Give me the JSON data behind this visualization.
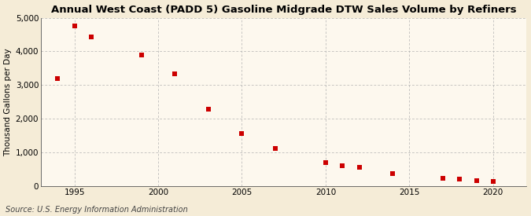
{
  "title": "Annual West Coast (PADD 5) Gasoline Midgrade DTW Sales Volume by Refiners",
  "ylabel": "Thousand Gallons per Day",
  "source": "Source: U.S. Energy Information Administration",
  "background_color": "#f5ecd7",
  "plot_background_color": "#fdf8ee",
  "marker_color": "#cc0000",
  "x": [
    1994,
    1995,
    1996,
    1999,
    2001,
    2003,
    2005,
    2007,
    2010,
    2011,
    2012,
    2014,
    2017,
    2018,
    2019,
    2020
  ],
  "y": [
    3200,
    4750,
    4430,
    3900,
    3330,
    2300,
    1580,
    1130,
    700,
    620,
    560,
    380,
    240,
    220,
    175,
    150
  ],
  "xlim": [
    1993,
    2022
  ],
  "ylim": [
    0,
    5000
  ],
  "xticks": [
    1995,
    2000,
    2005,
    2010,
    2015,
    2020
  ],
  "yticks": [
    0,
    1000,
    2000,
    3000,
    4000,
    5000
  ],
  "ytick_labels": [
    "0",
    "1,000",
    "2,000",
    "3,000",
    "4,000",
    "5,000"
  ],
  "title_fontsize": 9.5,
  "label_fontsize": 7.5,
  "tick_fontsize": 7.5,
  "source_fontsize": 7.0,
  "marker_size": 4.5
}
